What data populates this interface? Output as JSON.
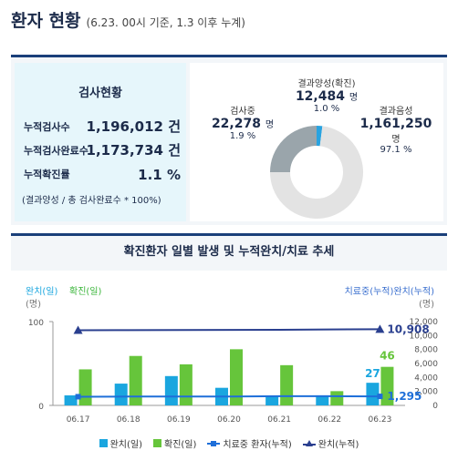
{
  "header": {
    "title": "환자 현황",
    "subtitle": "(6.23. 00시 기준, 1.3 이후 누계)"
  },
  "test_status": {
    "title": "검사현황",
    "rows": [
      {
        "label": "누적검사수",
        "value": "1,196,012 건"
      },
      {
        "label": "누적검사완료수",
        "value": "1,173,734 건"
      },
      {
        "label": "누적확진률",
        "value": "1.1 %"
      }
    ],
    "note": "(결과양성 / 총 검사완료수 * 100%)"
  },
  "donut": {
    "colors": {
      "positive": "#29a3e0",
      "negative": "#e3e3e3",
      "testing": "#9aa5ab"
    },
    "testing": {
      "label": "검사중",
      "value": "22,278",
      "unit": "명",
      "pct": "1.9 %",
      "fraction": 0.019
    },
    "positive": {
      "label": "결과양성(확진)",
      "value": "12,484",
      "unit": "명",
      "pct": "1.0 %",
      "fraction": 0.01
    },
    "negative": {
      "label": "결과음성",
      "value": "1,161,250",
      "unit": "명",
      "pct": "97.1 %",
      "fraction": 0.971
    }
  },
  "chart_title": "확진환자 일별 발생 및 누적완치/치료 추세",
  "chart_data": {
    "type": "bar",
    "categories": [
      "06.17",
      "06.18",
      "06.19",
      "06.20",
      "06.21",
      "06.22",
      "06.23"
    ],
    "left_axis": {
      "label_part1": "완치(일)",
      "label_part2": "확진(일)",
      "unit": "(명)",
      "ticks": [
        "100",
        "0"
      ],
      "ylim": [
        0,
        100
      ]
    },
    "right_axis": {
      "label_part1": "치료중(누적)",
      "label_part2": "완치(누적)",
      "unit": "(명)",
      "ticks": [
        "12,000",
        "10,000",
        "8,000",
        "6,000",
        "4,000",
        "2,000",
        "0"
      ],
      "ylim": [
        0,
        12000
      ]
    },
    "series": [
      {
        "name": "완치(일)",
        "kind": "bar",
        "axis": "left",
        "color": "#1aa6df",
        "values": [
          12,
          26,
          35,
          21,
          11,
          12,
          27
        ]
      },
      {
        "name": "확진(일)",
        "kind": "bar",
        "axis": "left",
        "color": "#66c53b",
        "values": [
          43,
          59,
          49,
          67,
          48,
          17,
          46
        ]
      },
      {
        "name": "치료중 환자(누적)",
        "kind": "line",
        "axis": "right",
        "color": "#1e6fd9",
        "values": [
          1247,
          1266,
          1279,
          1277,
          1313,
          1319,
          1295
        ]
      },
      {
        "name": "완치(누적)",
        "kind": "line",
        "axis": "right",
        "color": "#2a3f8f",
        "values": [
          10762,
          10774,
          10793,
          10812,
          10818,
          10881,
          10908
        ]
      }
    ],
    "labels": {
      "bar_last_cured": "27",
      "bar_last_confirmed": "46",
      "line_last_treating": "1,295",
      "line_last_cured": "10,908"
    }
  },
  "legend": [
    {
      "label": "완치(일)",
      "color": "#1aa6df",
      "kind": "box"
    },
    {
      "label": "확진(일)",
      "color": "#66c53b",
      "kind": "box"
    },
    {
      "label": "치료중 환자(누적)",
      "color": "#1e6fd9",
      "kind": "line-square"
    },
    {
      "label": "완치(누적)",
      "color": "#2a3f8f",
      "kind": "line-triangle"
    }
  ]
}
